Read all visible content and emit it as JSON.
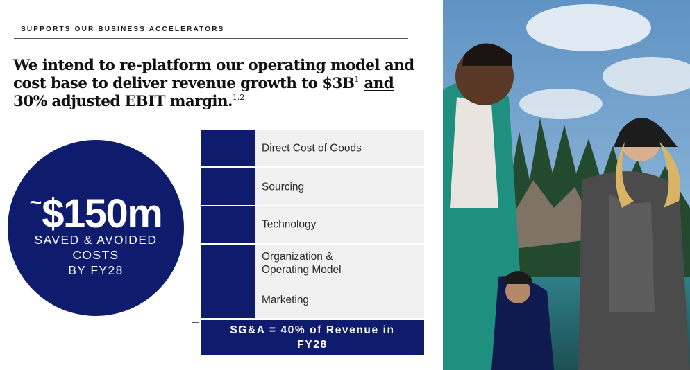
{
  "eyebrow": "SUPPORTS OUR BUSINESS ACCELERATORS",
  "headline": {
    "part1": "We intend to re-platform our operating model and cost base to deliver revenue growth to $3B",
    "sup1": "1",
    "underlined": "and",
    "part2": "30% adjusted EBIT margin.",
    "sup2": "1,2"
  },
  "savings": {
    "tilde": "~",
    "amount": "$150m",
    "description_lines": [
      "SAVED & AVOIDED",
      "COSTS",
      "BY FY28"
    ]
  },
  "cost_areas": [
    {
      "label_lines": [
        "Direct Cost of Goods"
      ]
    },
    {
      "label_lines": [
        "Sourcing"
      ]
    },
    {
      "label_lines": [
        "Technology"
      ]
    },
    {
      "label_lines": [
        "Organization &",
        "Operating Model"
      ]
    },
    {
      "label_lines": [
        "Marketing"
      ]
    }
  ],
  "sga_target": {
    "lines": [
      "SG&A = 40% of Revenue in",
      "FY28"
    ]
  },
  "colors": {
    "brand_navy": "#0f1c6e",
    "row_background": "#f1f1f1"
  },
  "photo": {
    "icon": "outdoor-lifestyle-photo"
  }
}
